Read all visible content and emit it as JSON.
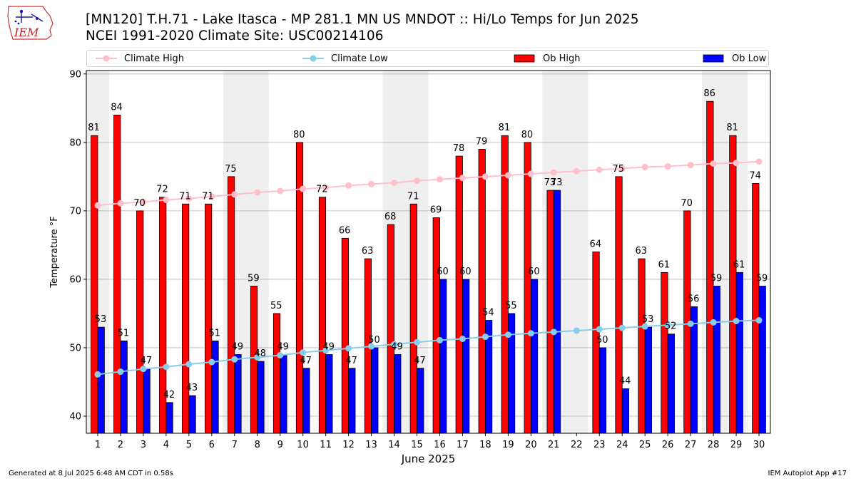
{
  "header": {
    "logo_text": "IEM",
    "title_line1": "[MN120] T.H.71 - Lake Itasca - MP 281.1  MN US MNDOT :: Hi/Lo Temps for Jun 2025",
    "title_line2": "NCEI 1991-2020 Climate Site: USC00214106"
  },
  "legend": {
    "placement": "top",
    "items": [
      {
        "label": "Climate High",
        "color": "#ffc0cb",
        "kind": "line"
      },
      {
        "label": "Climate Low",
        "color": "#87ceeb",
        "kind": "line"
      },
      {
        "label": "Ob High",
        "color": "#ff0000",
        "kind": "bar"
      },
      {
        "label": "Ob Low",
        "color": "#0000ff",
        "kind": "bar"
      }
    ]
  },
  "footer": {
    "left": "Generated at 8 Jul 2025 6:48 AM CDT in 0.58s",
    "right": "IEM Autoplot App #17"
  },
  "chart_data": {
    "type": "bar",
    "xlabel": "June 2025",
    "ylabel": "Temperature °F",
    "ylim": [
      37.5,
      90.5
    ],
    "yticks": [
      40,
      50,
      60,
      70,
      80,
      90
    ],
    "grid": true,
    "categories": [
      "1",
      "2",
      "3",
      "4",
      "5",
      "6",
      "7",
      "8",
      "9",
      "10",
      "11",
      "12",
      "13",
      "14",
      "15",
      "16",
      "17",
      "18",
      "19",
      "20",
      "21",
      "22",
      "23",
      "24",
      "25",
      "26",
      "27",
      "28",
      "29",
      "30"
    ],
    "weekend_shading_days": [
      [
        1,
        1
      ],
      [
        7,
        8
      ],
      [
        14,
        15
      ],
      [
        21,
        22
      ],
      [
        28,
        29
      ]
    ],
    "series": [
      {
        "name": "Ob High",
        "type": "bar",
        "color": "#ff0000",
        "values": [
          81,
          84,
          70,
          72,
          71,
          71,
          75,
          59,
          55,
          80,
          72,
          66,
          63,
          68,
          71,
          69,
          78,
          79,
          81,
          80,
          73,
          null,
          64,
          75,
          63,
          61,
          70,
          86,
          81,
          74
        ]
      },
      {
        "name": "Ob Low",
        "type": "bar",
        "color": "#0000ff",
        "values": [
          53,
          51,
          47,
          42,
          43,
          51,
          49,
          48,
          49,
          47,
          49,
          47,
          50,
          49,
          47,
          60,
          60,
          54,
          55,
          60,
          73,
          null,
          50,
          44,
          53,
          52,
          56,
          59,
          61,
          59
        ]
      },
      {
        "name": "Climate High",
        "type": "line",
        "color": "#ffc0cb",
        "values": [
          70.8,
          71.1,
          71.3,
          71.6,
          71.8,
          72.1,
          72.4,
          72.7,
          72.9,
          73.2,
          73.4,
          73.7,
          73.9,
          74.1,
          74.4,
          74.6,
          74.8,
          75.0,
          75.2,
          75.4,
          75.6,
          75.8,
          76.0,
          76.2,
          76.4,
          76.5,
          76.7,
          76.9,
          77.0,
          77.2
        ]
      },
      {
        "name": "Climate Low",
        "type": "line",
        "color": "#87ceeb",
        "values": [
          46.1,
          46.5,
          46.9,
          47.2,
          47.6,
          47.9,
          48.3,
          48.6,
          48.9,
          49.3,
          49.6,
          49.9,
          50.2,
          50.5,
          50.8,
          51.1,
          51.3,
          51.6,
          51.9,
          52.1,
          52.3,
          52.5,
          52.7,
          52.9,
          53.1,
          53.3,
          53.5,
          53.7,
          53.9,
          54.0
        ]
      }
    ]
  }
}
